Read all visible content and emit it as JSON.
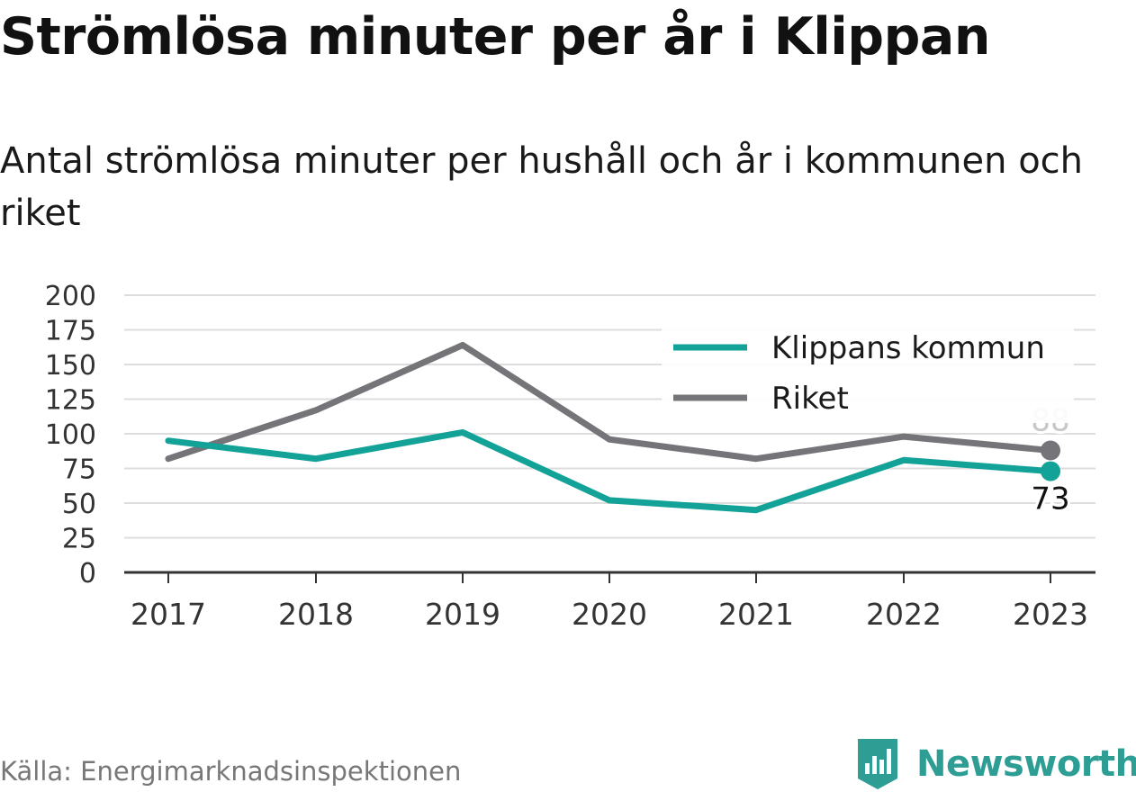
{
  "title": "Strömlösa minuter per år i Klippan",
  "subtitle": "Antal strömlösa minuter per hushåll och år i kommunen och riket",
  "source": "Källa: Energimarknadsinspektionen",
  "brand": {
    "name": "Newsworthy",
    "icon": "newsworthy-logo-icon",
    "color": "#2e9e94"
  },
  "chart_data": {
    "type": "line",
    "title": "Strömlösa minuter per år i Klippan",
    "subtitle": "Antal strömlösa minuter per hushåll och år i kommunen och riket",
    "x": [
      "2017",
      "2018",
      "2019",
      "2020",
      "2021",
      "2022",
      "2023"
    ],
    "ylim": [
      0,
      200
    ],
    "yticks": [
      0,
      25,
      50,
      75,
      100,
      125,
      150,
      175,
      200
    ],
    "grid": true,
    "legend_position": "top-right",
    "series": [
      {
        "name": "Klippans kommun",
        "color": "#13a297",
        "values": [
          95,
          82,
          101,
          52,
          45,
          81,
          73
        ],
        "end_label": "73"
      },
      {
        "name": "Riket",
        "color": "#747479",
        "values": [
          82,
          117,
          164,
          96,
          82,
          98,
          88
        ],
        "end_label": "88"
      }
    ]
  }
}
